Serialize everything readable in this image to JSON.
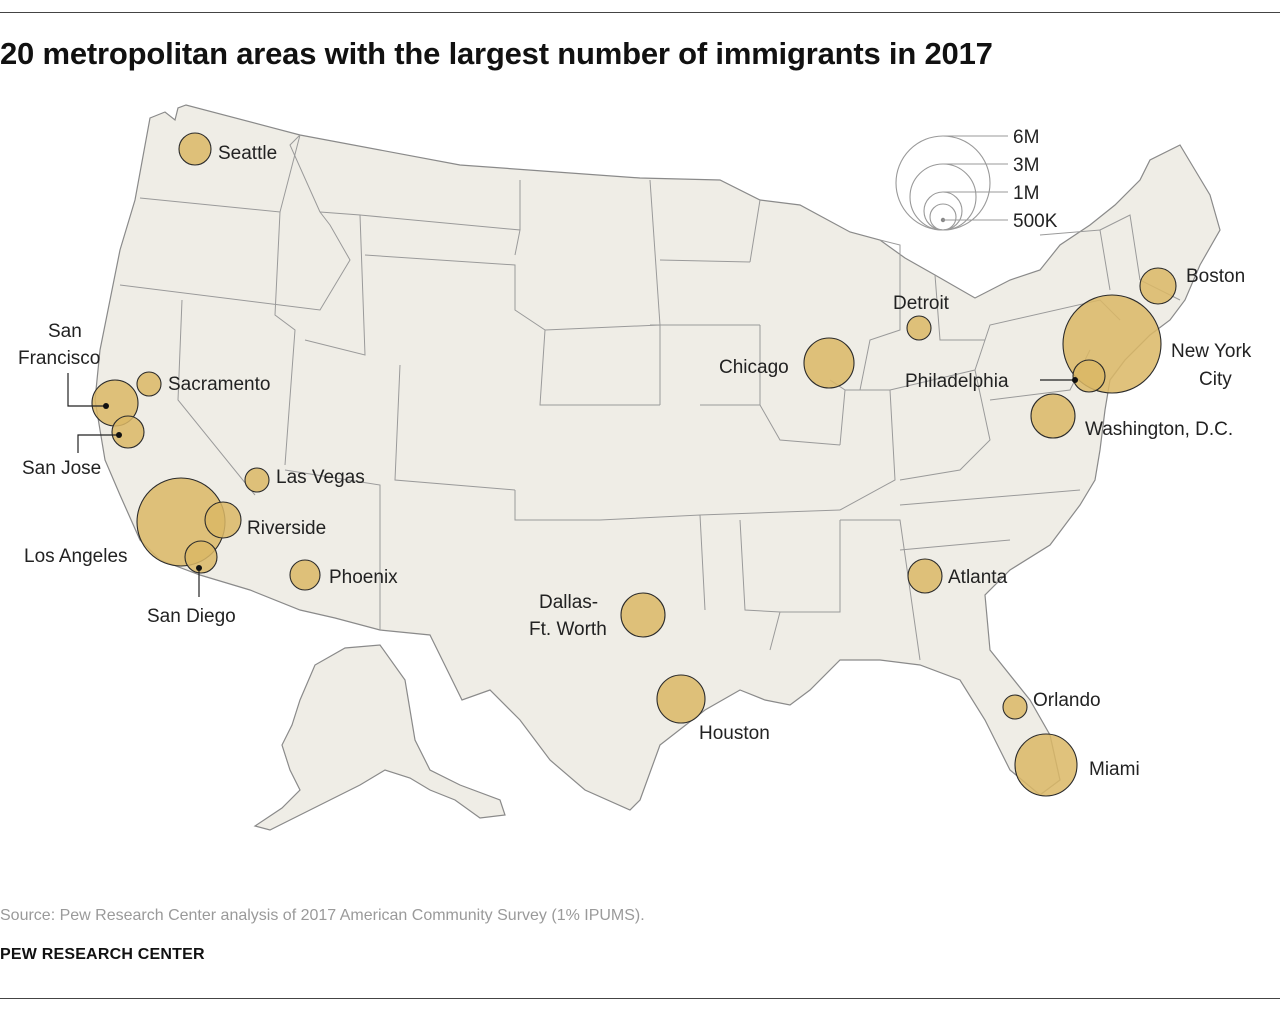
{
  "title": "20 metropolitan areas with the largest number of immigrants in 2017",
  "source": "Source: Pew Research Center analysis of 2017 American Community Survey (1% IPUMS).",
  "org": "PEW RESEARCH CENTER",
  "legend": {
    "labels": [
      "6M",
      "3M",
      "1M",
      "500K"
    ]
  },
  "cities": {
    "seattle": "Seattle",
    "san_francisco_1": "San",
    "san_francisco_2": "Francisco",
    "sacramento": "Sacramento",
    "san_jose": "San Jose",
    "las_vegas": "Las Vegas",
    "riverside": "Riverside",
    "los_angeles": "Los Angeles",
    "san_diego": "San Diego",
    "phoenix": "Phoenix",
    "dallas_1": "Dallas-",
    "dallas_2": "Ft. Worth",
    "houston": "Houston",
    "chicago": "Chicago",
    "detroit": "Detroit",
    "atlanta": "Atlanta",
    "orlando": "Orlando",
    "miami": "Miami",
    "washington": "Washington, D.C.",
    "philadelphia": "Philadelphia",
    "new_york_1": "New York",
    "new_york_2": "City",
    "boston": "Boston"
  },
  "colors": {
    "bubble": "#dbb765",
    "land": "#efede6"
  }
}
